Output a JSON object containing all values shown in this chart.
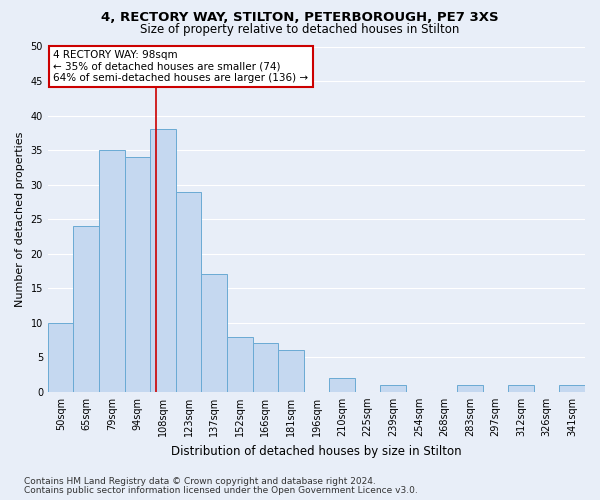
{
  "title1": "4, RECTORY WAY, STILTON, PETERBOROUGH, PE7 3XS",
  "title2": "Size of property relative to detached houses in Stilton",
  "xlabel": "Distribution of detached houses by size in Stilton",
  "ylabel": "Number of detached properties",
  "categories": [
    "50sqm",
    "65sqm",
    "79sqm",
    "94sqm",
    "108sqm",
    "123sqm",
    "137sqm",
    "152sqm",
    "166sqm",
    "181sqm",
    "196sqm",
    "210sqm",
    "225sqm",
    "239sqm",
    "254sqm",
    "268sqm",
    "283sqm",
    "297sqm",
    "312sqm",
    "326sqm",
    "341sqm"
  ],
  "values": [
    10,
    24,
    35,
    34,
    38,
    29,
    17,
    8,
    7,
    6,
    0,
    2,
    0,
    1,
    0,
    0,
    1,
    0,
    1,
    0,
    1
  ],
  "bar_color": "#c5d8f0",
  "bar_edge_color": "#6aaad4",
  "vline_x": 3.72,
  "vline_color": "#cc0000",
  "annotation_text": "4 RECTORY WAY: 98sqm\n← 35% of detached houses are smaller (74)\n64% of semi-detached houses are larger (136) →",
  "annotation_box_color": "#ffffff",
  "annotation_box_edge": "#cc0000",
  "footer1": "Contains HM Land Registry data © Crown copyright and database right 2024.",
  "footer2": "Contains public sector information licensed under the Open Government Licence v3.0.",
  "ylim": [
    0,
    50
  ],
  "yticks": [
    0,
    5,
    10,
    15,
    20,
    25,
    30,
    35,
    40,
    45,
    50
  ],
  "bg_color": "#e8eef8",
  "grid_color": "#ffffff",
  "title1_fontsize": 9.5,
  "title2_fontsize": 8.5,
  "xlabel_fontsize": 8.5,
  "ylabel_fontsize": 8,
  "tick_fontsize": 7,
  "annot_fontsize": 7.5,
  "footer_fontsize": 6.5
}
